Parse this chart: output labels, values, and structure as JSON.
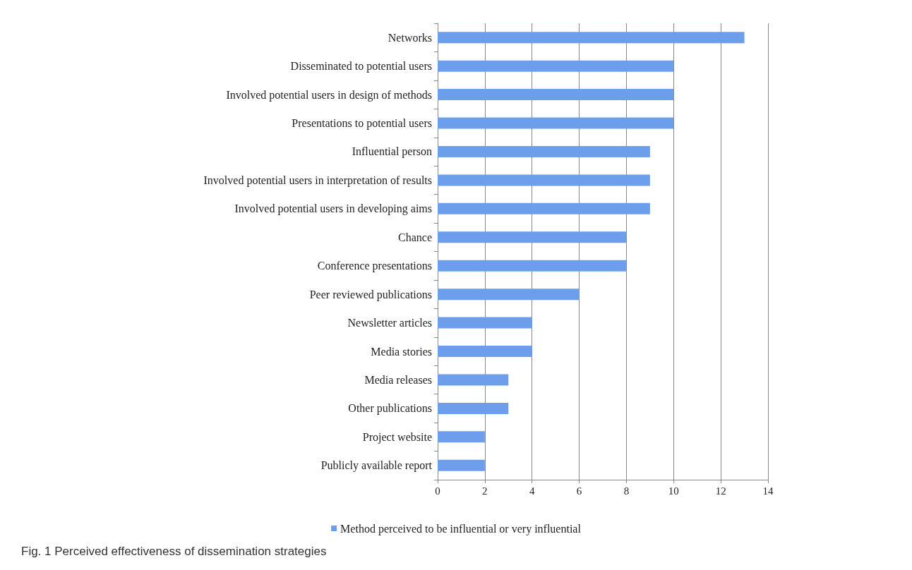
{
  "chart_data": {
    "type": "bar",
    "orientation": "horizontal",
    "categories": [
      "Networks",
      "Disseminated to potential users",
      "Involved potential users in design of methods",
      "Presentations to potential users",
      "Influential person",
      "Involved potential users in interpretation of results",
      "Involved potential users in developing aims",
      "Chance",
      "Conference presentations",
      "Peer reviewed publications",
      "Newsletter articles",
      "Media stories",
      "Media releases",
      "Other publications",
      "Project website",
      "Publicly available report"
    ],
    "series": [
      {
        "name": "Method perceived to be influential or very influential",
        "color": "#6d9eeb",
        "values": [
          13,
          10,
          10,
          10,
          9,
          9,
          9,
          8,
          8,
          6,
          4,
          4,
          3,
          3,
          2,
          2
        ]
      }
    ],
    "xlim": [
      0,
      14
    ],
    "xticks": [
      0,
      2,
      4,
      6,
      8,
      10,
      12,
      14
    ],
    "grid": "x",
    "legend": "bottom",
    "annotations": [
      "Fig. 1 Perceived effectiveness of dissemination strategies"
    ]
  }
}
